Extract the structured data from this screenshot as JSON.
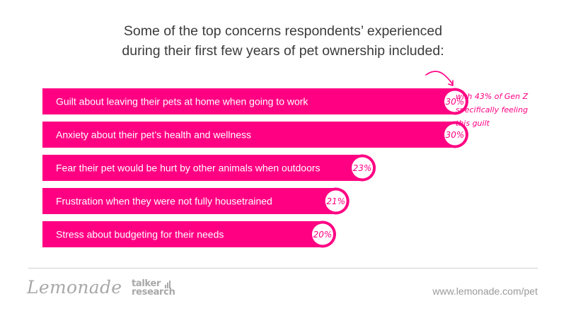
{
  "title_lines": [
    "Some of the top concerns respondents’ experienced",
    "during their first few years of pet ownership included:"
  ],
  "annotation": {
    "lines": [
      "with 43% of Gen Z",
      "specifically feeling",
      "this guilt"
    ]
  },
  "colors": {
    "bar": "#ff0083",
    "bar_text": "#ffffff",
    "badge_bg": "#ffffff",
    "badge_text": "#ff0083",
    "title": "#3b3b3b",
    "logos": "#a8a8a8"
  },
  "chart_data": {
    "type": "bar",
    "orientation": "horizontal",
    "title": "Some of the top concerns respondents’ experienced during their first few years of pet ownership included:",
    "categories": [
      "Guilt about leaving their pets at home when going to work",
      "Anxiety about their pet’s health and wellness",
      "Fear their pet would be hurt by other animals when outdoors",
      "Frustration when they were not fully housetrained",
      "Stress about budgeting for their needs"
    ],
    "values": [
      30,
      30,
      23,
      21,
      20
    ],
    "value_labels": [
      "30%",
      "30%",
      "23%",
      "21%",
      "20%"
    ],
    "unit": "%",
    "xlabel": "",
    "ylabel": "",
    "legend": "none"
  },
  "footer": {
    "brand_lemonade": "Lemonade",
    "brand_talker_line1": "talker",
    "brand_talker_line2": "research",
    "url": "www.lemonade.com/pet"
  }
}
